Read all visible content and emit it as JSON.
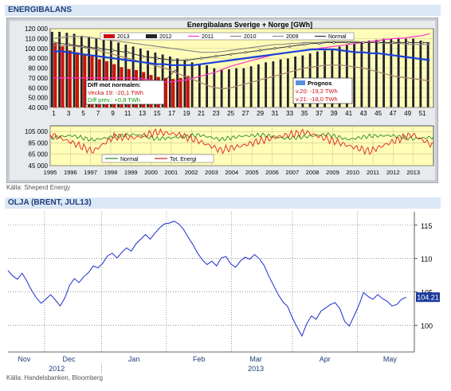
{
  "panel1": {
    "header": "ENERGIBALANS",
    "source": "Källa: Sheperd Energy"
  },
  "panel2": {
    "header": "OLJA (BRENT, JUL13)",
    "source": "Källa: Handelsbanken, Bloomberg"
  },
  "chart_data": [
    {
      "type": "bar",
      "title": "Energibalans Sverige + Norge  [GWh]",
      "legend": [
        "2013",
        "2012",
        "2011",
        "2010",
        "2009",
        "Normal"
      ],
      "xticks": [
        "1",
        "3",
        "5",
        "7",
        "9",
        "11",
        "13",
        "15",
        "17",
        "19",
        "21",
        "23",
        "25",
        "27",
        "29",
        "31",
        "33",
        "35",
        "37",
        "39",
        "41",
        "43",
        "45",
        "47",
        "49",
        "51"
      ],
      "yticks": [
        "120 000",
        "110 000",
        "100 000",
        "90 000",
        "80 000",
        "70 000",
        "60 000",
        "50 000",
        "40 000"
      ],
      "ylim": [
        40000,
        120000
      ],
      "series": [
        {
          "name": "2013",
          "values": [
            105000,
            102000,
            98000,
            96000,
            94000,
            92000,
            89000,
            87000,
            84000,
            81000,
            79000,
            78000,
            76000,
            73000,
            71000,
            70000,
            69000,
            70000,
            72000
          ]
        },
        {
          "name": "2012",
          "values": [
            117000,
            117000,
            116000,
            115000,
            113000,
            112000,
            110000,
            109000,
            108000,
            106000,
            104000,
            102000,
            100000,
            98000,
            96000,
            94000,
            92000,
            90000,
            88000,
            86000,
            84000,
            83000,
            80000,
            79000,
            79000,
            80000,
            80000,
            82000,
            84000,
            86000,
            87000,
            89000,
            90000,
            92000,
            93000,
            95000,
            97000,
            98000,
            100000,
            102000,
            104000,
            105000,
            107000,
            108000,
            109000,
            110000,
            110000,
            111000,
            110000,
            110000,
            108000,
            106000
          ]
        },
        {
          "name": "2011",
          "values": [
            70000,
            70000,
            70000,
            70000,
            70000,
            70000,
            70000,
            70000,
            70000,
            70000,
            70000,
            70000,
            69000,
            68000,
            67000,
            66000,
            66000,
            67000,
            68000,
            70000,
            72000,
            74000,
            76000,
            79000,
            82000,
            84000,
            86000,
            88000,
            90000,
            92000,
            94000,
            95000,
            96000,
            97000,
            98000,
            99000,
            100000,
            101000,
            102000,
            103000,
            104000,
            105000,
            106000,
            107000,
            108000,
            109000,
            110000,
            110000,
            111000,
            112000,
            113000,
            115000
          ]
        },
        {
          "name": "2010",
          "values": [
            103000,
            103000,
            103000,
            102000,
            101000,
            100000,
            98000,
            96000,
            94000,
            92000,
            90000,
            88000,
            86000,
            84000,
            82000,
            80000,
            77000,
            74000,
            71000,
            68000,
            65000,
            62000,
            60000,
            59000,
            60000,
            62000,
            64000,
            66000,
            68000,
            70000,
            72000,
            74000,
            76000,
            78000,
            80000,
            81000,
            82000,
            83000,
            83000,
            83000,
            82000,
            81000,
            80000,
            78000,
            76000,
            74000,
            72000,
            71000,
            70000,
            69000,
            68000,
            67000
          ]
        },
        {
          "name": "2009",
          "values": [
            110000,
            111000,
            112000,
            112000,
            112000,
            111000,
            110000,
            109000,
            108000,
            107000,
            106000,
            105000,
            104000,
            103000,
            102000,
            101000,
            100000,
            99000,
            98000,
            97000,
            96000,
            96000,
            96000,
            97000,
            98000,
            99000,
            100000,
            101000,
            102000,
            103000,
            104000,
            104000,
            105000,
            105000,
            106000,
            106000,
            106000,
            107000,
            107000,
            107000,
            107000,
            107000,
            106000,
            106000,
            106000,
            105000,
            105000,
            105000,
            104000,
            104000,
            104000,
            104000
          ]
        },
        {
          "name": "Normal",
          "values": [
            106000,
            105000,
            104000,
            103000,
            102000,
            101000,
            100000,
            99000,
            98000,
            97000,
            96000,
            94000,
            92000,
            91000,
            90000,
            89000,
            88000,
            88000,
            88000,
            89000,
            90000,
            91000,
            92000,
            93000,
            94000,
            95000,
            96000,
            97000,
            98000,
            99000,
            100000,
            101000,
            102000,
            103000,
            104000,
            105000,
            105000,
            106000,
            106000,
            106000,
            106000,
            106000,
            106000,
            106000,
            106000,
            106000,
            106000,
            106000,
            106000,
            106000,
            106000,
            106000
          ]
        },
        {
          "name": "Blue",
          "values": [
            97000,
            97000,
            96000,
            95000,
            94000,
            93000,
            92000,
            91000,
            90000,
            89000,
            88000,
            87000,
            86000,
            85000,
            84000,
            84000,
            83000,
            83000,
            83000,
            83000,
            84000,
            85000,
            86000,
            87000,
            88000,
            89000,
            90000,
            91000,
            92000,
            93000,
            94000,
            95000,
            96000,
            97000,
            98000,
            99000,
            99000,
            99000,
            99000,
            98000,
            97000,
            96000,
            96000,
            95000,
            95000,
            94000,
            93000,
            92000,
            91000,
            90000,
            89000,
            88000
          ]
        }
      ],
      "annotation": {
        "title": "Diff mot normalen:",
        "line1": "Vecka 19: -20,1 TWh",
        "line2": "Diff prev.: +0,8 TWh"
      },
      "prognos": {
        "title": "Prognos",
        "line1": "v.20: -19,2 TWh",
        "line2": "v.21: -18,0 TWh"
      }
    },
    {
      "type": "line",
      "legend": [
        "Normal",
        "Tot. Energi"
      ],
      "yticks": [
        "105 000",
        "85 000",
        "65 000",
        "45 000"
      ],
      "ylim": [
        45000,
        115000
      ],
      "xticks": [
        "1995",
        "1996",
        "1997",
        "1998",
        "1999",
        "2000",
        "2001",
        "2002",
        "2003",
        "2004",
        "2005",
        "2006",
        "2007",
        "2008",
        "2009",
        "2010",
        "2011",
        "2012",
        "2013"
      ],
      "series": [
        {
          "name": "Normal",
          "values": [
            94000,
            98000,
            90000,
            96000,
            100000,
            92000,
            95000,
            99000,
            91000,
            97000,
            99000,
            93000,
            96000,
            100000,
            91000,
            97000,
            98000,
            92000,
            95000
          ]
        },
        {
          "name": "Tot. Energi",
          "values": [
            100000,
            86000,
            70000,
            96000,
            94000,
            104000,
            100000,
            88000,
            72000,
            80000,
            90000,
            98000,
            104000,
            92000,
            80000,
            70000,
            86000,
            100000,
            80000
          ]
        }
      ]
    },
    {
      "type": "line",
      "yticks": [
        "115",
        "110",
        "105",
        "100"
      ],
      "ylim": [
        96,
        117
      ],
      "xticks": [
        "Nov",
        "Dec",
        "Jan",
        "Feb",
        "Mar",
        "Apr",
        "May"
      ],
      "xgroups": [
        "2012",
        "2013"
      ],
      "last_value": "104.21",
      "values": [
        108.2,
        107.4,
        106.9,
        107.8,
        106.6,
        105.2,
        104.1,
        103.3,
        103.9,
        104.6,
        103.8,
        102.9,
        104.1,
        106.0,
        107.0,
        106.4,
        107.3,
        107.9,
        108.9,
        108.6,
        109.3,
        110.4,
        110.8,
        110.1,
        110.9,
        111.6,
        111.1,
        112.2,
        112.9,
        113.6,
        112.9,
        113.8,
        114.6,
        115.2,
        115.3,
        115.6,
        115.2,
        114.4,
        113.2,
        112.1,
        110.8,
        109.8,
        109.1,
        109.6,
        108.9,
        110.1,
        110.3,
        109.2,
        108.7,
        109.6,
        110.2,
        109.9,
        110.6,
        110.0,
        109.0,
        107.4,
        106.0,
        104.6,
        103.5,
        102.8,
        101.1,
        99.7,
        98.4,
        100.2,
        101.4,
        100.9,
        102.1,
        102.6,
        103.1,
        103.4,
        102.5,
        100.6,
        99.9,
        101.4,
        103.0,
        104.9,
        104.3,
        103.9,
        104.6,
        104.0,
        103.6,
        102.9,
        103.1,
        103.9,
        104.21
      ]
    }
  ]
}
